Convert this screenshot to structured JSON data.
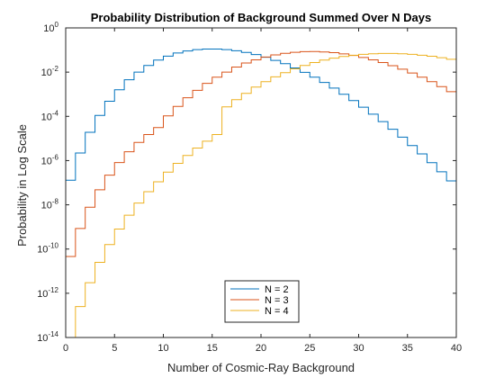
{
  "chart_data": {
    "type": "line",
    "style": "stairs",
    "title": "Probability Distribution of Background Summed Over N Days",
    "xlabel": "Number of Cosmic-Ray Background",
    "ylabel": "Probability in Log Scale",
    "xlim": [
      0,
      40
    ],
    "ylim": [
      1e-14,
      1
    ],
    "yscale": "log",
    "x_ticks": [
      0,
      5,
      10,
      15,
      20,
      25,
      30,
      35,
      40
    ],
    "y_ticks": [
      {
        "base": "10",
        "exp": "0",
        "value": 1
      },
      {
        "base": "10",
        "exp": "-2",
        "value": 0.01
      },
      {
        "base": "10",
        "exp": "-4",
        "value": 0.0001
      },
      {
        "base": "10",
        "exp": "-6",
        "value": 1e-06
      },
      {
        "base": "10",
        "exp": "-8",
        "value": 1e-08
      },
      {
        "base": "10",
        "exp": "-10",
        "value": 1e-10
      },
      {
        "base": "10",
        "exp": "-12",
        "value": 1e-12
      },
      {
        "base": "10",
        "exp": "-14",
        "value": 1e-14
      }
    ],
    "grid": false,
    "legend_position": "bottom-center",
    "series": [
      {
        "name": "N = 2",
        "color": "#0072BD",
        "x": [
          0,
          1,
          2,
          3,
          4,
          5,
          6,
          7,
          8,
          9,
          10,
          11,
          12,
          13,
          14,
          15,
          16,
          17,
          18,
          19,
          20,
          21,
          22,
          23,
          24,
          25,
          26,
          27,
          28,
          29,
          30,
          31,
          32,
          33,
          34,
          35,
          36,
          37,
          38,
          39,
          40
        ],
        "y": [
          1.3e-07,
          2.2e-06,
          1.9e-05,
          0.00011,
          0.00048,
          0.0016,
          0.0045,
          0.01,
          0.02,
          0.035,
          0.053,
          0.073,
          0.091,
          0.104,
          0.111,
          0.111,
          0.104,
          0.093,
          0.078,
          0.062,
          0.047,
          0.034,
          0.024,
          0.0155,
          0.0098,
          0.0059,
          0.0034,
          0.0019,
          0.001,
          0.00052,
          0.00026,
          0.000125,
          5.8e-05,
          2.6e-05,
          1.15e-05,
          4.8e-06,
          2e-06,
          8e-07,
          3.1e-07,
          1.2e-07,
          4.5e-08
        ]
      },
      {
        "name": "N = 3",
        "color": "#D95319",
        "x": [
          0,
          1,
          2,
          3,
          4,
          5,
          6,
          7,
          8,
          9,
          10,
          11,
          12,
          13,
          14,
          15,
          16,
          17,
          18,
          19,
          20,
          21,
          22,
          23,
          24,
          25,
          26,
          27,
          28,
          29,
          30,
          31,
          32,
          33,
          34,
          35,
          36,
          37,
          38,
          39,
          40
        ],
        "y": [
          4.6e-11,
          8.5e-10,
          7.8e-09,
          4.8e-08,
          2.2e-07,
          8.1e-07,
          2.5e-06,
          6.6e-06,
          1.5e-05,
          3.1e-05,
          0.000105,
          0.00028,
          0.00069,
          0.0015,
          0.0031,
          0.0059,
          0.01,
          0.017,
          0.026,
          0.036,
          0.048,
          0.06,
          0.071,
          0.079,
          0.084,
          0.085,
          0.082,
          0.076,
          0.067,
          0.057,
          0.046,
          0.036,
          0.027,
          0.0195,
          0.0136,
          0.0091,
          0.0059,
          0.0037,
          0.0022,
          0.0013,
          0.00075
        ]
      },
      {
        "name": "N = 4",
        "color": "#EDB120",
        "x": [
          0,
          1,
          2,
          3,
          4,
          5,
          6,
          7,
          8,
          9,
          10,
          11,
          12,
          13,
          14,
          15,
          16,
          17,
          18,
          19,
          20,
          21,
          22,
          23,
          24,
          25,
          26,
          27,
          28,
          29,
          30,
          31,
          32,
          33,
          34,
          35,
          36,
          37,
          38,
          39,
          40
        ],
        "y": [
          1e-14,
          2.5e-13,
          3e-12,
          2.5e-11,
          1.6e-10,
          8e-10,
          3.4e-09,
          1.2e-08,
          3.9e-08,
          1.1e-07,
          3e-07,
          7.5e-07,
          1.7e-06,
          3.7e-06,
          7.5e-06,
          1.5e-05,
          0.00027,
          0.00057,
          0.0011,
          0.0021,
          0.0037,
          0.0061,
          0.0095,
          0.014,
          0.02,
          0.027,
          0.035,
          0.043,
          0.051,
          0.058,
          0.064,
          0.068,
          0.07,
          0.07,
          0.068,
          0.064,
          0.058,
          0.052,
          0.045,
          0.038,
          0.031
        ]
      }
    ]
  }
}
